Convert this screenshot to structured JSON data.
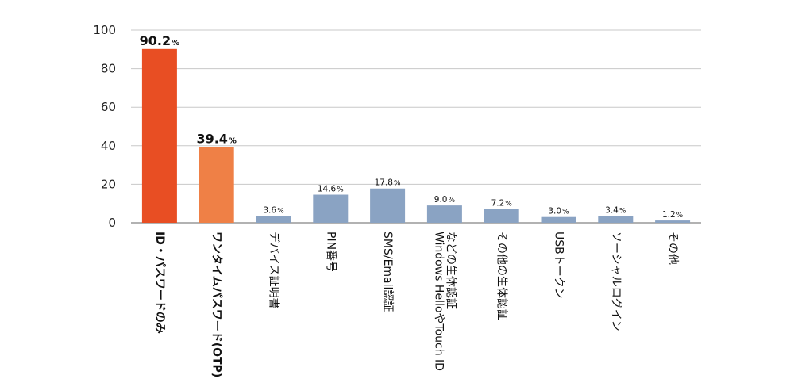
{
  "chart_data": {
    "type": "bar",
    "title": "",
    "xlabel": "",
    "ylabel": "",
    "ylim": [
      0,
      100
    ],
    "yticks": [
      0,
      20,
      40,
      60,
      80,
      100
    ],
    "grid": true,
    "legend": "none",
    "value_suffix": "%",
    "categories": [
      "ID・パスワードのみ",
      "ワンタイムパスワード(OTP)",
      "デバイス証明書",
      "PIN番号",
      "SMS/Email認証",
      "Windows HelloやTouch IDなどの生体認証",
      "その他の生体認証",
      "USBトークン",
      "ソーシャルログイン",
      "その他"
    ],
    "category_lines": [
      [
        "ID・パスワードのみ"
      ],
      [
        "ワンタイムパスワード(OTP)"
      ],
      [
        "デバイス証明書"
      ],
      [
        "PIN番号"
      ],
      [
        "SMS/Email認証"
      ],
      [
        "Windows HelloやTouch ID",
        "などの生体認証"
      ],
      [
        "その他の生体認証"
      ],
      [
        "USBトークン"
      ],
      [
        "ソーシャルログイン"
      ],
      [
        "その他"
      ]
    ],
    "values": [
      90.2,
      39.4,
      3.6,
      14.6,
      17.8,
      9.0,
      7.2,
      3.0,
      3.4,
      1.2
    ],
    "value_labels": [
      "90.2",
      "39.4",
      "3.6",
      "14.6",
      "17.8",
      "9.0",
      "7.2",
      "3.0",
      "3.4",
      "1.2"
    ],
    "colors": [
      "#e84e23",
      "#ef8046",
      "#8aa3c3",
      "#8aa3c3",
      "#8aa3c3",
      "#8aa3c3",
      "#8aa3c3",
      "#8aa3c3",
      "#8aa3c3",
      "#8aa3c3"
    ],
    "highlighted": [
      true,
      true,
      false,
      false,
      false,
      false,
      false,
      false,
      false,
      false
    ]
  }
}
